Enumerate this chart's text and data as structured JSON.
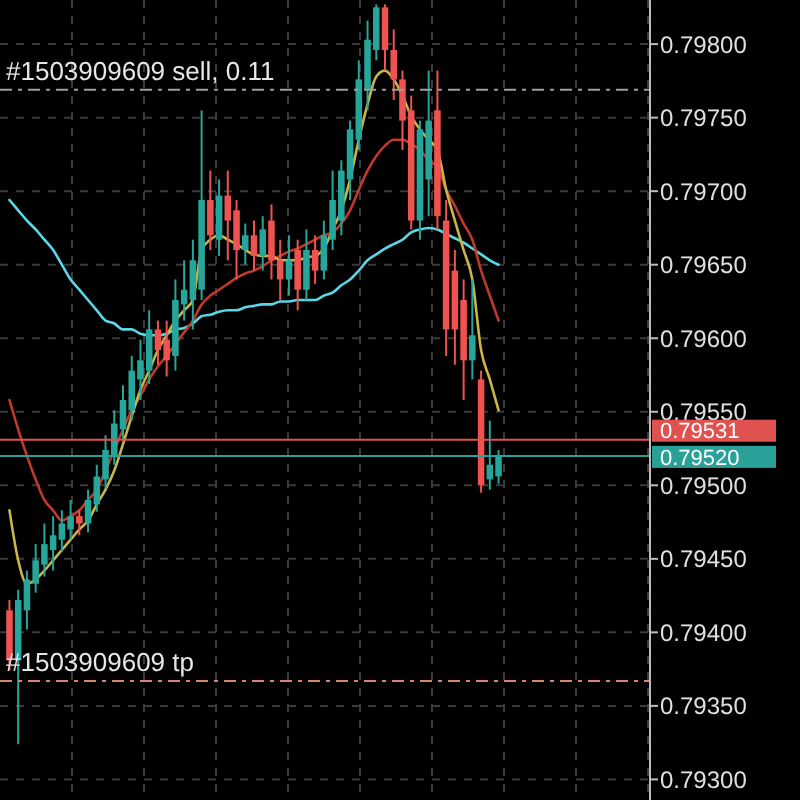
{
  "chart_data": {
    "type": "candlestick",
    "categories": [
      null,
      null,
      null,
      null,
      null,
      null,
      null,
      null,
      null,
      null,
      null,
      null,
      null,
      null,
      null,
      null,
      null,
      null,
      null,
      null,
      null,
      null,
      null,
      null,
      null,
      null,
      null,
      null,
      null,
      null,
      null,
      null,
      null,
      null,
      null,
      null,
      null,
      null,
      null,
      null,
      null,
      null,
      null,
      null,
      null,
      null,
      null,
      null,
      null,
      null,
      null,
      null,
      null,
      null,
      null,
      null,
      null
    ],
    "ohlc": [
      [
        0.79415,
        0.79422,
        0.79374,
        0.79381
      ],
      [
        0.79381,
        0.79429,
        0.79324,
        0.79422
      ],
      [
        0.79415,
        0.79442,
        0.79402,
        0.79436
      ],
      [
        0.79433,
        0.7946,
        0.79427,
        0.79449
      ],
      [
        0.79446,
        0.79474,
        0.79438,
        0.7946
      ],
      [
        0.79456,
        0.79479,
        0.79442,
        0.79466
      ],
      [
        0.79463,
        0.79483,
        0.79455,
        0.79474
      ],
      [
        0.7947,
        0.7949,
        0.79463,
        0.79479
      ],
      [
        0.79479,
        0.79483,
        0.79466,
        0.79474
      ],
      [
        0.79474,
        0.79497,
        0.79468,
        0.7949
      ],
      [
        0.79487,
        0.79514,
        0.79482,
        0.79506
      ],
      [
        0.79504,
        0.79534,
        0.79498,
        0.79524
      ],
      [
        0.7952,
        0.79551,
        0.79514,
        0.79542
      ],
      [
        0.79538,
        0.79568,
        0.79531,
        0.79558
      ],
      [
        0.79551,
        0.79588,
        0.79544,
        0.79578
      ],
      [
        0.79572,
        0.79599,
        0.79558,
        0.79585
      ],
      [
        0.79578,
        0.79619,
        0.79569,
        0.79606
      ],
      [
        0.79606,
        0.79612,
        0.79582,
        0.79592
      ],
      [
        0.79599,
        0.79612,
        0.79574,
        0.79585
      ],
      [
        0.79588,
        0.7964,
        0.79578,
        0.79626
      ],
      [
        0.79623,
        0.79653,
        0.79612,
        0.79633
      ],
      [
        0.79626,
        0.79667,
        0.79606,
        0.79653
      ],
      [
        0.79633,
        0.79755,
        0.79626,
        0.79694
      ],
      [
        0.79694,
        0.79714,
        0.7966,
        0.7967
      ],
      [
        0.79667,
        0.79708,
        0.79656,
        0.79697
      ],
      [
        0.79697,
        0.79714,
        0.79653,
        0.7968
      ],
      [
        0.79687,
        0.79694,
        0.7964,
        0.7966
      ],
      [
        0.7966,
        0.79678,
        0.7965,
        0.7967
      ],
      [
        0.7967,
        0.7968,
        0.79646,
        0.79656
      ],
      [
        0.79656,
        0.79683,
        0.79646,
        0.79674
      ],
      [
        0.7968,
        0.79691,
        0.7964,
        0.79653
      ],
      [
        0.79653,
        0.79667,
        0.79626,
        0.7964
      ],
      [
        0.7964,
        0.7967,
        0.79629,
        0.79653
      ],
      [
        0.7966,
        0.79667,
        0.79619,
        0.79633
      ],
      [
        0.79633,
        0.79674,
        0.79626,
        0.7966
      ],
      [
        0.7966,
        0.7967,
        0.79637,
        0.79646
      ],
      [
        0.79646,
        0.7968,
        0.7964,
        0.7967
      ],
      [
        0.79667,
        0.79714,
        0.7966,
        0.79694
      ],
      [
        0.7968,
        0.79721,
        0.7967,
        0.79714
      ],
      [
        0.79708,
        0.79748,
        0.79694,
        0.79742
      ],
      [
        0.79735,
        0.79789,
        0.79728,
        0.79776
      ],
      [
        0.79769,
        0.79816,
        0.79755,
        0.79803
      ],
      [
        0.79796,
        0.79827,
        0.79789,
        0.79825
      ],
      [
        0.79825,
        0.79827,
        0.79782,
        0.79796
      ],
      [
        0.79796,
        0.7981,
        0.79762,
        0.79776
      ],
      [
        0.79776,
        0.79782,
        0.79728,
        0.79748
      ],
      [
        0.79755,
        0.79765,
        0.79674,
        0.7968
      ],
      [
        0.7968,
        0.79748,
        0.79667,
        0.79742
      ],
      [
        0.79708,
        0.79782,
        0.79683,
        0.79748
      ],
      [
        0.79755,
        0.79782,
        0.79674,
        0.79683
      ],
      [
        0.7968,
        0.79694,
        0.79588,
        0.79606
      ],
      [
        0.79646,
        0.7966,
        0.79582,
        0.79606
      ],
      [
        0.79626,
        0.7964,
        0.79558,
        0.79585
      ],
      [
        0.79585,
        0.7964,
        0.79572,
        0.79602
      ],
      [
        0.79572,
        0.79578,
        0.79495,
        0.795
      ],
      [
        0.79504,
        0.79544,
        0.79497,
        0.79514
      ],
      [
        0.79506,
        0.79524,
        0.79501,
        0.7952
      ]
    ],
    "colors": [
      "#ef5350",
      "#26a69a",
      "#26a69a",
      "#26a69a",
      "#26a69a",
      "#26a69a",
      "#26a69a",
      "#26a69a",
      "#ef5350",
      "#26a69a",
      "#26a69a",
      "#26a69a",
      "#26a69a",
      "#26a69a",
      "#26a69a",
      "#26a69a",
      "#26a69a",
      "#ef5350",
      "#ef5350",
      "#26a69a",
      "#26a69a",
      "#26a69a",
      "#26a69a",
      "#ef5350",
      "#26a69a",
      "#ef5350",
      "#ef5350",
      "#26a69a",
      "#ef5350",
      "#26a69a",
      "#ef5350",
      "#ef5350",
      "#26a69a",
      "#ef5350",
      "#26a69a",
      "#ef5350",
      "#26a69a",
      "#26a69a",
      "#26a69a",
      "#26a69a",
      "#26a69a",
      "#26a69a",
      "#26a69a",
      "#ef5350",
      "#ef5350",
      "#ef5350",
      "#ef5350",
      "#26a69a",
      "#26a69a",
      "#ef5350",
      "#ef5350",
      "#ef5350",
      "#ef5350",
      "#26a69a",
      "#ef5350",
      "#26a69a",
      "#26a69a"
    ],
    "series": [
      {
        "type": "line",
        "color": "#5ad6e6",
        "values": [
          0.79694,
          0.79687,
          0.7968,
          0.79674,
          0.79667,
          0.7966,
          0.7965,
          0.7964,
          0.79633,
          0.79626,
          0.79619,
          0.79612,
          0.7961,
          0.79606,
          0.79606,
          0.79603,
          0.79602,
          0.79602,
          0.79603,
          0.79606,
          0.79607,
          0.7961,
          0.79615,
          0.79616,
          0.79618,
          0.79619,
          0.79619,
          0.79621,
          0.79622,
          0.79623,
          0.79623,
          0.79625,
          0.79625,
          0.79626,
          0.79626,
          0.79626,
          0.79629,
          0.79631,
          0.79636,
          0.7964,
          0.79646,
          0.79653,
          0.79657,
          0.79661,
          0.79664,
          0.79667,
          0.79672,
          0.79674,
          0.79675,
          0.79674,
          0.79671,
          0.79668,
          0.79665,
          0.79661,
          0.79657,
          0.79653,
          0.7965
        ]
      },
      {
        "type": "line",
        "color": "#c0392b",
        "values": [
          0.79558,
          0.79538,
          0.7952,
          0.79504,
          0.7949,
          0.79483,
          0.79476,
          0.79479,
          0.79483,
          0.7949,
          0.79497,
          0.7951,
          0.79524,
          0.79538,
          0.79551,
          0.79561,
          0.79572,
          0.79581,
          0.79588,
          0.79596,
          0.79604,
          0.79612,
          0.79623,
          0.79629,
          0.79633,
          0.79637,
          0.79641,
          0.79644,
          0.79646,
          0.79649,
          0.79653,
          0.79656,
          0.79659,
          0.79661,
          0.79664,
          0.79667,
          0.7967,
          0.79672,
          0.79678,
          0.79687,
          0.79701,
          0.79714,
          0.79724,
          0.79731,
          0.79735,
          0.79735,
          0.79732,
          0.79728,
          0.79721,
          0.79716,
          0.79701,
          0.7969,
          0.79678,
          0.79667,
          0.79646,
          0.79629,
          0.79612
        ]
      },
      {
        "type": "line",
        "color": "#c9b648",
        "values": [
          0.79483,
          0.79449,
          0.79433,
          0.79436,
          0.79442,
          0.79449,
          0.79456,
          0.79463,
          0.7947,
          0.79476,
          0.79487,
          0.79497,
          0.7951,
          0.79528,
          0.79547,
          0.79565,
          0.79578,
          0.79592,
          0.79602,
          0.79612,
          0.79619,
          0.79626,
          0.7966,
          0.79667,
          0.7967,
          0.79667,
          0.79664,
          0.7966,
          0.79657,
          0.79656,
          0.79656,
          0.79653,
          0.79653,
          0.79653,
          0.79655,
          0.79656,
          0.79661,
          0.79674,
          0.79687,
          0.79708,
          0.79735,
          0.79759,
          0.79778,
          0.79782,
          0.79776,
          0.79765,
          0.79751,
          0.79742,
          0.79735,
          0.79728,
          0.79701,
          0.7968,
          0.7966,
          0.7964,
          0.79592,
          0.79572,
          0.79551
        ]
      }
    ],
    "ylim": [
      0.79286,
      0.7983
    ],
    "yticks": [
      {
        "value": 0.793,
        "label": "0.79300"
      },
      {
        "value": 0.7935,
        "label": "0.79350"
      },
      {
        "value": 0.794,
        "label": "0.79400"
      },
      {
        "value": 0.7945,
        "label": "0.79450"
      },
      {
        "value": 0.795,
        "label": "0.79500"
      },
      {
        "value": 0.7955,
        "label": "0.79550"
      },
      {
        "value": 0.796,
        "label": "0.79600"
      },
      {
        "value": 0.7965,
        "label": "0.79650"
      },
      {
        "value": 0.797,
        "label": "0.79700"
      },
      {
        "value": 0.7975,
        "label": "0.79750"
      },
      {
        "value": 0.798,
        "label": "0.79800"
      }
    ],
    "ref_lines": [
      {
        "axis": "y",
        "value": 0.79769,
        "label": "#1503909609 sell, 0.11",
        "color": "#9e9e9e",
        "line_style": "dashed"
      },
      {
        "axis": "y",
        "value": 0.79367,
        "label": "#1503909609 tp",
        "color": "#d9826f",
        "line_style": "dashed"
      },
      {
        "axis": "y",
        "value": 0.79531,
        "label": "0.79531",
        "color": "#e0524f",
        "line_style": "solid"
      },
      {
        "axis": "y",
        "value": 0.7952,
        "label": "0.79520",
        "color": "#2aa198",
        "line_style": "solid"
      }
    ],
    "grid": true,
    "tick_labels": "y"
  }
}
